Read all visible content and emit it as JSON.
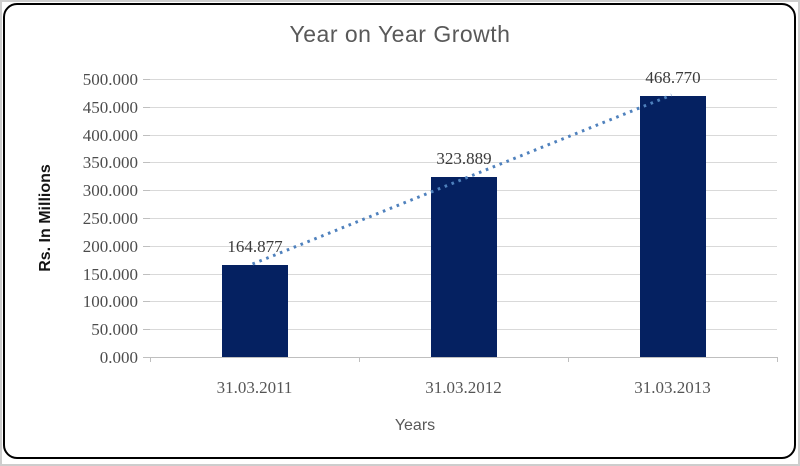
{
  "chart_data": {
    "type": "bar",
    "title": "Year on Year Growth",
    "categories": [
      "31.03.2011",
      "31.03.2012",
      "31.03.2013"
    ],
    "values": [
      164.877,
      323.889,
      468.77
    ],
    "data_labels": [
      "164.877",
      "323.889",
      "468.770"
    ],
    "xlabel": "Years",
    "ylabel": "Rs. In Millions",
    "ylim": [
      0,
      500
    ],
    "y_tick_step": 50,
    "y_tick_labels": [
      "0.000",
      "50.000",
      "100.000",
      "150.000",
      "200.000",
      "250.000",
      "300.000",
      "350.000",
      "400.000",
      "450.000",
      "500.000"
    ],
    "grid": true,
    "legend": "none",
    "trendline": {
      "type": "linear",
      "style": "dotted"
    }
  },
  "colors": {
    "bar": "#052161",
    "trendline": "#4F81BD",
    "gridline": "#D9D9D9",
    "axis_line": "#BFBFBF",
    "title_text": "#595959",
    "tick_text": "#4C4C4C",
    "data_label_text": "#3B3B3B",
    "border": "#000000"
  }
}
